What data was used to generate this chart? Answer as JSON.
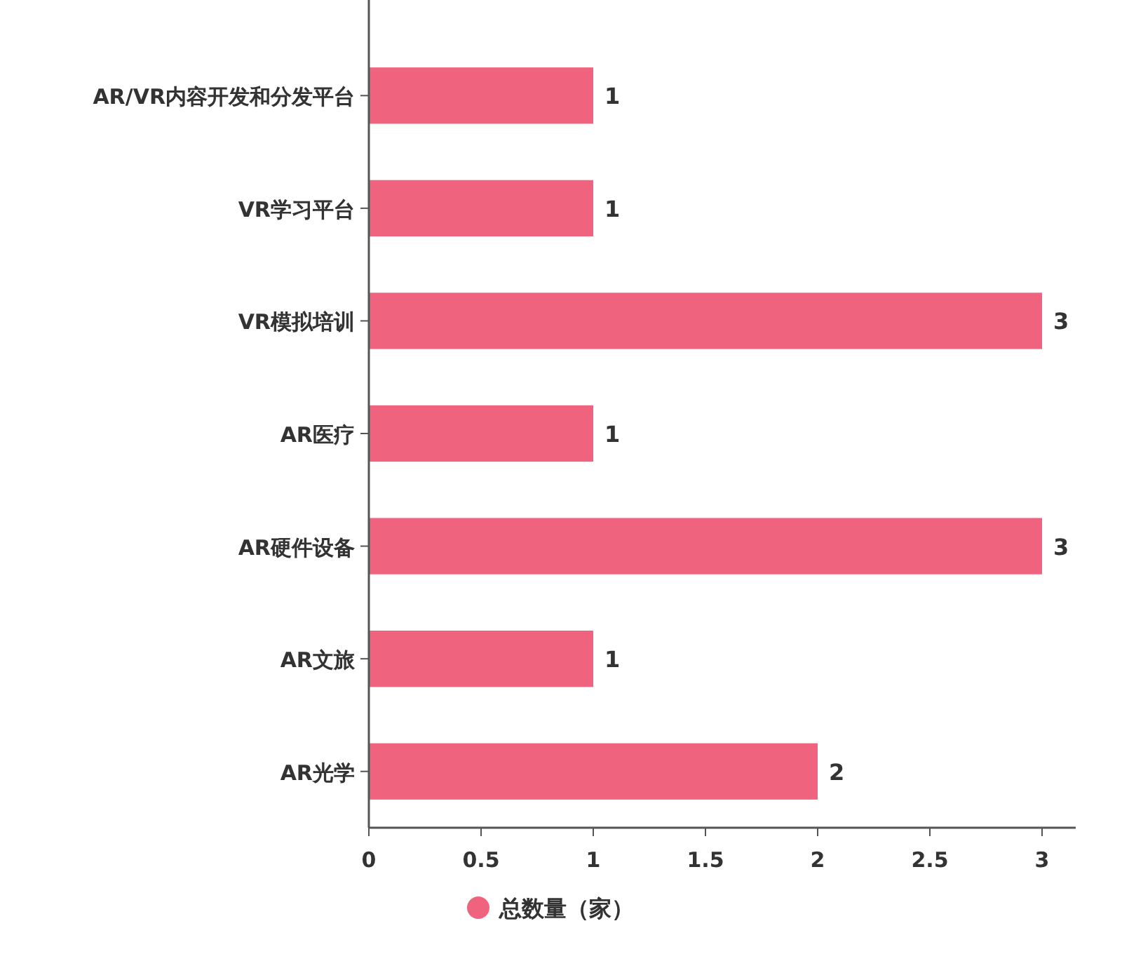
{
  "chart_data": {
    "type": "bar",
    "orientation": "horizontal",
    "categories": [
      "AR/VR内容开发和分发平台",
      "VR学习平台",
      "VR模拟培训",
      "AR医疗",
      "AR硬件设备",
      "AR文旅",
      "AR光学"
    ],
    "series": [
      {
        "name": "总数量（家）",
        "color": "#f0637f",
        "values": [
          1,
          1,
          3,
          1,
          3,
          1,
          2
        ]
      }
    ],
    "xlim": [
      0,
      3.15
    ],
    "xticks": [
      0,
      0.5,
      1,
      1.5,
      2,
      2.5,
      3
    ],
    "grid": false,
    "legend": "bottom",
    "data_labels": true
  }
}
